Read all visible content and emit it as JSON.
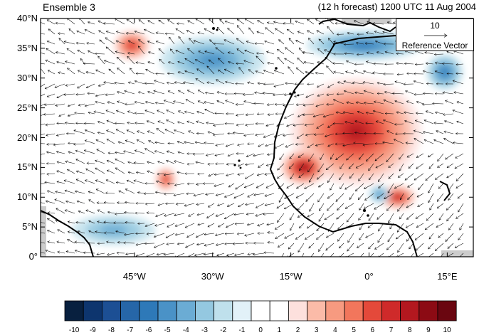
{
  "title_left": "Ensemble 3",
  "title_right": "(12 h forecast) 1200 UTC 11 Aug 2004",
  "reference_vector": {
    "magnitude": "10",
    "label": "Reference Vector"
  },
  "map": {
    "lon_range": [
      -63,
      20
    ],
    "lat_range": [
      0,
      40
    ],
    "y_ticks": [
      "40°N",
      "35°N",
      "30°N",
      "25°N",
      "20°N",
      "15°N",
      "10°N",
      "5°N",
      "0°"
    ],
    "x_ticks": [
      "45°W",
      "30°W",
      "15°W",
      "0°",
      "15°E"
    ],
    "land_color": "#cccccc",
    "features": [
      "South America coast",
      "Iberia",
      "Northwest Africa coast",
      "Gulf of Guinea coast",
      "Canary Islands",
      "Cape Verde Islands",
      "Madeira"
    ],
    "anomaly_features": [
      {
        "sign": "positive",
        "region": "Sahara NE-SW band",
        "lon_range": [
          -15,
          10
        ],
        "lat_range": [
          12,
          30
        ],
        "max": 8
      },
      {
        "sign": "positive",
        "region": "Sahel west Africa",
        "lon_range": [
          -17,
          -8
        ],
        "lat_range": [
          12,
          18
        ],
        "max": 9
      },
      {
        "sign": "positive",
        "region": "Central Africa",
        "lon_range": [
          2,
          9
        ],
        "lat_range": [
          8,
          12
        ],
        "max": 8
      },
      {
        "sign": "positive",
        "region": "Mid Atlantic north",
        "lon_range": [
          -49,
          -42
        ],
        "lat_range": [
          33,
          38
        ],
        "max": 7
      },
      {
        "sign": "positive",
        "region": "Tropical Atlantic",
        "lon_range": [
          -41,
          -37
        ],
        "lat_range": [
          11,
          15
        ],
        "max": 7
      },
      {
        "sign": "negative",
        "region": "Mediterranean / Iberia",
        "lon_range": [
          -12,
          10
        ],
        "lat_range": [
          33,
          38
        ],
        "max": -6
      },
      {
        "sign": "negative",
        "region": "Atlantic north",
        "lon_range": [
          -40,
          -20
        ],
        "lat_range": [
          29,
          37
        ],
        "max": -5
      },
      {
        "sign": "negative",
        "region": "Sahara east",
        "lon_range": [
          11,
          18
        ],
        "lat_range": [
          28,
          34
        ],
        "max": -6
      },
      {
        "sign": "negative",
        "region": "Central Africa",
        "lon_range": [
          0,
          4
        ],
        "lat_range": [
          9,
          12
        ],
        "max": -5
      },
      {
        "sign": "negative",
        "region": "Atlantic tropical west",
        "lon_range": [
          -57,
          -41
        ],
        "lat_range": [
          2,
          7
        ],
        "max": -4
      }
    ]
  },
  "colorbar": {
    "labels": [
      "-10",
      "-9",
      "-8",
      "-7",
      "-6",
      "-5",
      "-4",
      "-3",
      "-2",
      "-1",
      "0",
      "1",
      "2",
      "3",
      "4",
      "5",
      "6",
      "7",
      "8",
      "9",
      "10"
    ],
    "colors": [
      "#08203f",
      "#0d356e",
      "#1c4f94",
      "#2666a8",
      "#2e79b8",
      "#4a92c7",
      "#6bacd4",
      "#94c8e0",
      "#bfe0ec",
      "#e2f1f8",
      "#ffffff",
      "#ffffff",
      "#fde0dd",
      "#fbbba8",
      "#f79a80",
      "#f2765c",
      "#e4493a",
      "#cf2a2a",
      "#b3181f",
      "#8c0b14",
      "#6a0610"
    ]
  }
}
